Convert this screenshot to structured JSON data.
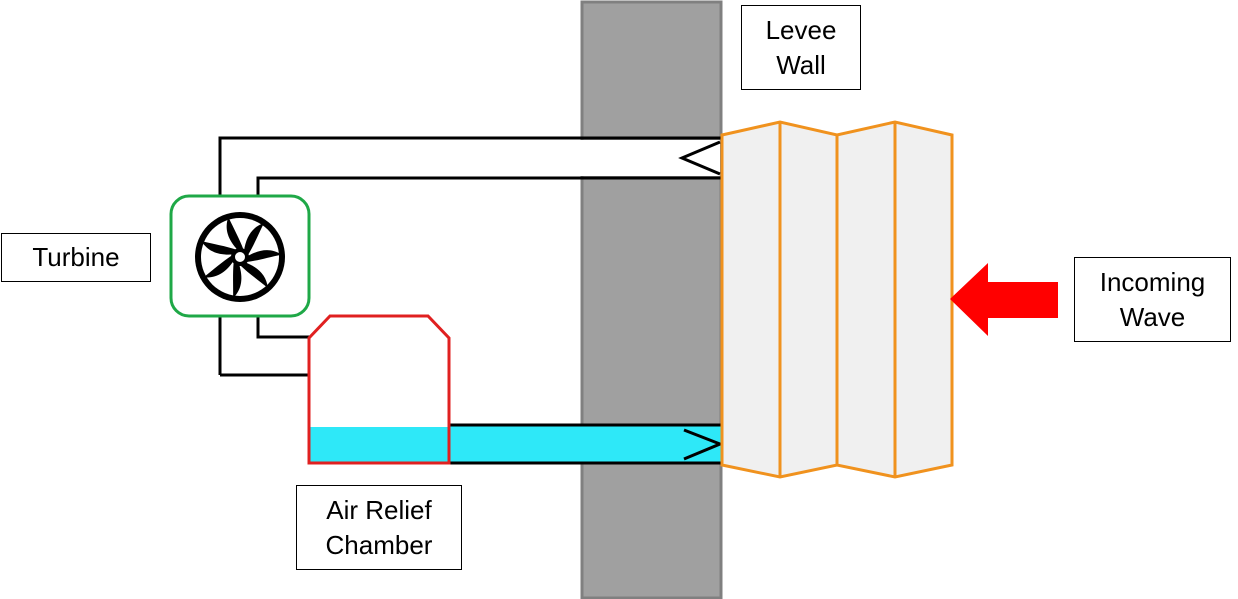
{
  "labels": {
    "levee": [
      "Levee",
      "Wall"
    ],
    "turbine": "Turbine",
    "wave": [
      "Incoming",
      "Wave"
    ],
    "chamber": [
      "Air Relief",
      "Chamber"
    ]
  },
  "colors": {
    "levee_wall_fill": "#a0a0a0",
    "levee_wall_stroke": "#808080",
    "turbine_housing": "#1fa847",
    "air_relief_chamber": "#e02020",
    "water": "#2ee8f8",
    "wave_outline": "#f0921e",
    "wave_fill": "#f0f0f0",
    "wave_arrow": "#ff0000",
    "pipe": "#000000"
  },
  "icons": [
    "fan-icon",
    "incoming-wave-arrow",
    "pipe-outlet-arrow"
  ]
}
